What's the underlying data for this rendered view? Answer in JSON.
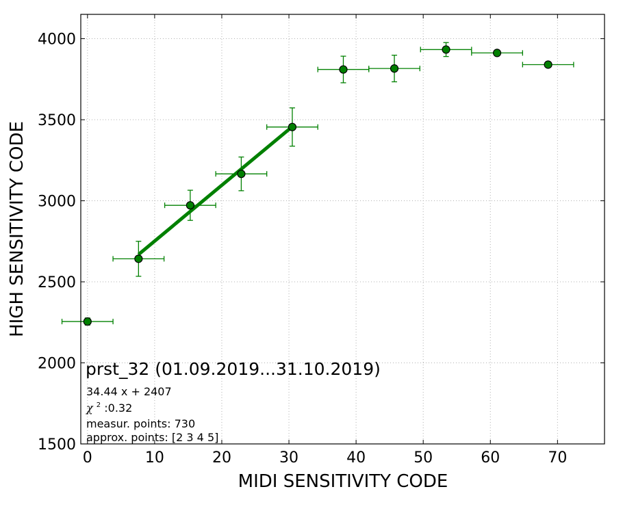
{
  "chart_data": {
    "type": "scatter",
    "title": "",
    "xlabel": "MIDI SENSITIVITY CODE",
    "ylabel": "HIGH SENSITIVITY CODE",
    "xlim": [
      -1,
      77
    ],
    "ylim": [
      1500,
      4150
    ],
    "x_ticks": [
      0,
      10,
      20,
      30,
      40,
      50,
      60,
      70
    ],
    "y_ticks": [
      1500,
      2000,
      2500,
      3000,
      3500,
      4000
    ],
    "grid": true,
    "colors": {
      "marker_fill": "#008000",
      "marker_edge": "#000000",
      "error_bar": "#008000",
      "fit_line": "#008000"
    },
    "points": [
      {
        "x": 0.0,
        "y": 2255,
        "xerr": 3.8,
        "yerr": 22
      },
      {
        "x": 7.6,
        "y": 2642,
        "xerr": 3.8,
        "yerr": 108
      },
      {
        "x": 15.3,
        "y": 2972,
        "xerr": 3.8,
        "yerr": 93
      },
      {
        "x": 22.9,
        "y": 3166,
        "xerr": 3.8,
        "yerr": 104
      },
      {
        "x": 30.5,
        "y": 3455,
        "xerr": 3.8,
        "yerr": 118
      },
      {
        "x": 38.1,
        "y": 3810,
        "xerr": 3.8,
        "yerr": 82
      },
      {
        "x": 45.7,
        "y": 3816,
        "xerr": 3.8,
        "yerr": 82
      },
      {
        "x": 53.4,
        "y": 3933,
        "xerr": 3.8,
        "yerr": 43
      },
      {
        "x": 61.0,
        "y": 3912,
        "xerr": 3.8,
        "yerr": 7
      },
      {
        "x": 68.6,
        "y": 3840,
        "xerr": 3.8,
        "yerr": 7
      }
    ],
    "fit": {
      "slope": 34.44,
      "intercept": 2407,
      "x_range": [
        7.6,
        30.5
      ]
    },
    "annotation": {
      "title": "prst_32 (01.09.2019...31.10.2019)",
      "equation": "34.44 x + 2407",
      "chi_symbol": "χ",
      "chi_exponent": "2",
      "chi_value": " :0.32",
      "measur_points": "measur. points: 730",
      "approx_points": "approx. points: [2 3 4 5]"
    }
  }
}
